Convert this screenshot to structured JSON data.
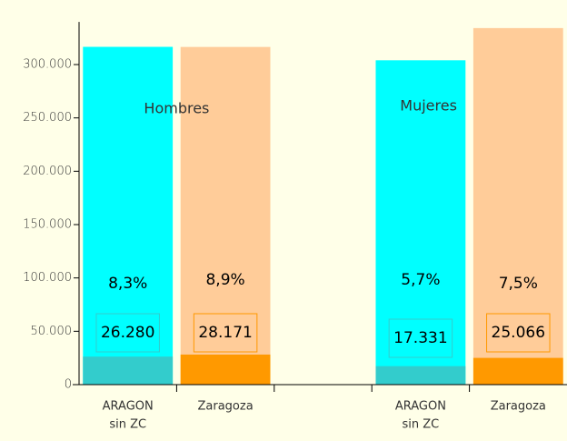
{
  "chart_data": {
    "type": "bar",
    "categories": [
      [
        "ARAGON",
        "sin ZC"
      ],
      [
        "Zaragoza"
      ],
      null,
      [
        "ARAGON",
        "sin ZC"
      ],
      [
        "Zaragoza"
      ]
    ],
    "groups": [
      "Hombres",
      "Mujeres"
    ],
    "values": [
      316600,
      316500,
      null,
      304000,
      334200
    ],
    "part_values": [
      26280,
      28171,
      null,
      17331,
      25066
    ],
    "part_value_labels": [
      "26.280",
      "28.171",
      null,
      "17.331",
      "25.066"
    ],
    "percent_values": [
      8.3,
      8.9,
      null,
      5.7,
      7.5
    ],
    "percent_value_labels": [
      "8,3%",
      "8,9%",
      null,
      "5,7%",
      "7,5%"
    ],
    "colors": [
      "#00ffff",
      "#ffcc99",
      null,
      "#00ffff",
      "#ffcc99"
    ],
    "part_colors": [
      "#33cccc",
      "#ff9900",
      null,
      "#33cccc",
      "#ff9900"
    ],
    "ylim": [
      0,
      340000
    ],
    "yticks": [
      0,
      {
        "value": 50000,
        "label": "50.000"
      },
      {
        "value": 100000,
        "label": "100.000"
      },
      {
        "value": 150000,
        "label": "150.000"
      },
      {
        "value": 200000,
        "label": "200.000"
      },
      {
        "value": 250000,
        "label": "250.000"
      },
      {
        "value": 300000,
        "label": "300.000"
      }
    ]
  }
}
